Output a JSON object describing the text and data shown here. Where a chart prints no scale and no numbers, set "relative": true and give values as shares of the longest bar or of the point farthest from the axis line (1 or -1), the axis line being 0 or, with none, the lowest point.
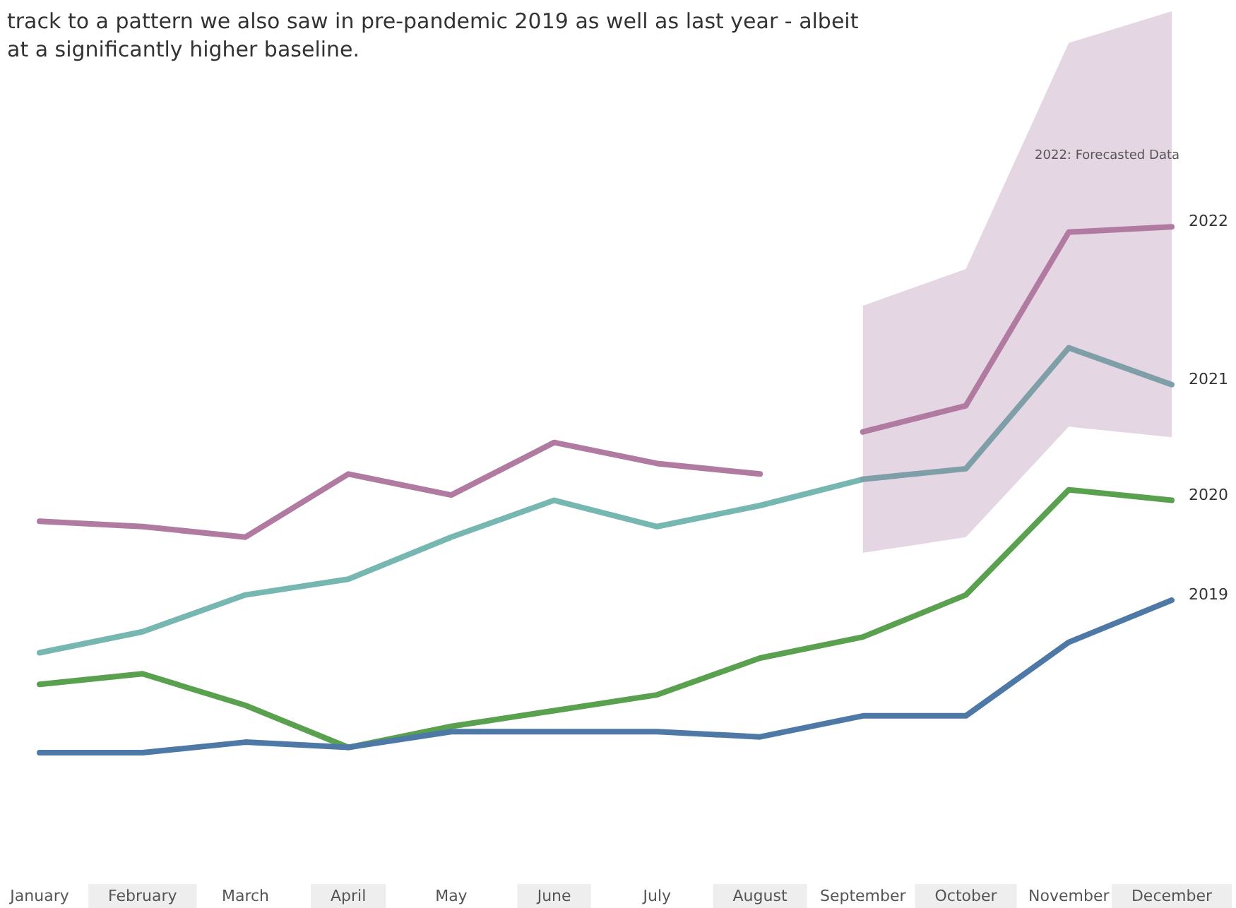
{
  "chart_data": {
    "type": "line",
    "relative": true,
    "title": "track to a pattern we also saw in pre-pandemic 2019 as well as last year - albeit\nat a significantly higher baseline.",
    "categories": [
      "January",
      "February",
      "March",
      "April",
      "May",
      "June",
      "July",
      "August",
      "September",
      "October",
      "November",
      "December"
    ],
    "series": [
      {
        "color": "#b07aa1",
        "values": [
          0.44,
          0.43,
          0.41,
          0.53,
          0.49,
          0.59,
          0.55,
          0.53,
          null,
          null,
          null,
          null
        ]
      },
      {
        "name": "2022",
        "color": "#b07aa1",
        "values": [
          null,
          null,
          null,
          null,
          null,
          null,
          null,
          null,
          0.61,
          0.66,
          0.99,
          1
        ],
        "lower": [
          null,
          null,
          null,
          null,
          null,
          null,
          null,
          null,
          0.38,
          0.41,
          0.62,
          0.6
        ],
        "upper": [
          null,
          null,
          null,
          null,
          null,
          null,
          null,
          null,
          0.85,
          0.92,
          1.35,
          1.41
        ]
      },
      {
        "color": "#76b7b2",
        "values": [
          0.19,
          0.23,
          0.3,
          0.33,
          0.41,
          0.48,
          0.43,
          0.47,
          0.52,
          null,
          null,
          null
        ]
      },
      {
        "name": "2021",
        "color": "#7f9fa8",
        "values": [
          null,
          null,
          null,
          null,
          null,
          null,
          null,
          null,
          0.52,
          0.54,
          0.77,
          0.7
        ]
      },
      {
        "name": "2020",
        "color": "#59a14f",
        "values": [
          0.13,
          0.15,
          0.09,
          0.01,
          0.05,
          0.08,
          0.11,
          0.18,
          0.22,
          0.3,
          0.5,
          0.48
        ]
      },
      {
        "name": "2019",
        "color": "#4e79a7",
        "values": [
          0,
          0,
          0.02,
          0.01,
          0.04,
          0.04,
          0.04,
          0.03,
          0.07,
          0.07,
          0.21,
          0.29
        ]
      }
    ],
    "annotations": [
      "2022: Forecasted Data"
    ],
    "legend": false,
    "grid": false,
    "marker": "none",
    "line_style": "solid"
  }
}
